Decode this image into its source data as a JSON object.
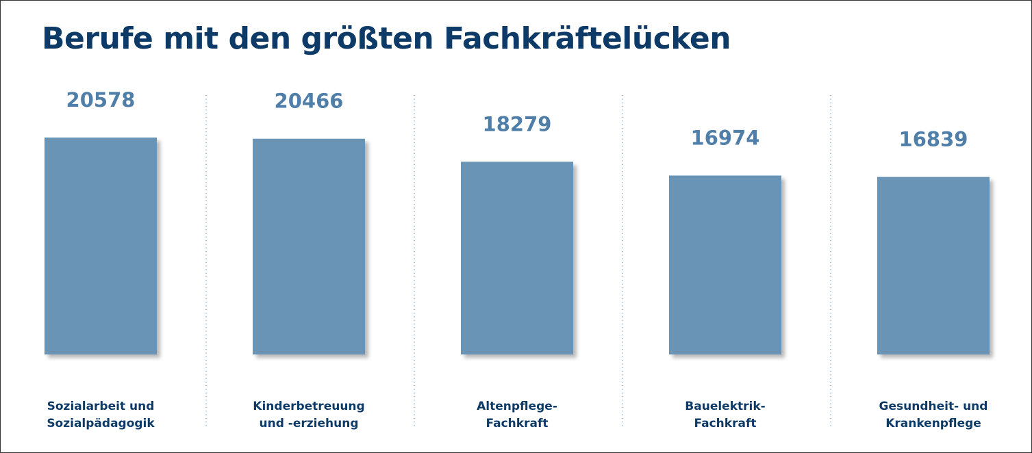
{
  "title": "Berufe mit den größten Fachkräftelücken",
  "colors": {
    "bar": "#6a94b5",
    "value_text": "#4f7fa8",
    "title_text": "#0d3a66",
    "category_text": "#0d3a66",
    "divider": "#7d9fbf"
  },
  "chart_data": {
    "type": "bar",
    "title": "Berufe mit den größten Fachkräftelücken",
    "categories": [
      [
        "Sozialarbeit und",
        "Sozialpädagogik"
      ],
      [
        "Kinderbetreuung",
        "und -erziehung"
      ],
      [
        "Altenpflege-",
        "Fachkraft"
      ],
      [
        "Bauelektrik-",
        "Fachkraft"
      ],
      [
        "Gesundheit- und",
        "Krankenpflege"
      ]
    ],
    "values": [
      20578,
      20466,
      18279,
      16974,
      16839
    ],
    "data_labels": [
      "20578",
      "20466",
      "18279",
      "16974",
      "16839"
    ],
    "xlabel": "",
    "ylabel": "",
    "grid": false,
    "legend": "none"
  }
}
